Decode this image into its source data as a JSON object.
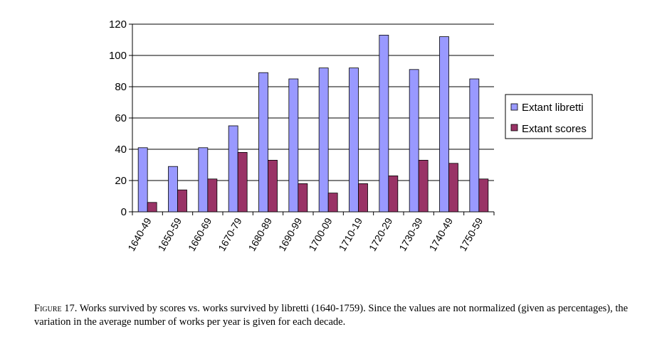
{
  "chart_data": {
    "type": "bar",
    "categories": [
      "1640-49",
      "1650-59",
      "1660-69",
      "1670-79",
      "1680-89",
      "1690-99",
      "1700-09",
      "1710-19",
      "1720-29",
      "1730-39",
      "1740-49",
      "1750-59"
    ],
    "series": [
      {
        "name": "Extant libretti",
        "color": "#9999ff",
        "values": [
          41,
          29,
          41,
          55,
          89,
          85,
          92,
          92,
          113,
          91,
          112,
          85
        ]
      },
      {
        "name": "Extant scores",
        "color": "#993366",
        "values": [
          6,
          14,
          21,
          38,
          33,
          18,
          12,
          18,
          23,
          33,
          31,
          21
        ]
      }
    ],
    "ylim": [
      0,
      120
    ],
    "yticks": [
      "0",
      "20",
      "40",
      "60",
      "80",
      "100",
      "120"
    ],
    "grid": true,
    "legend_position": "right"
  },
  "caption": {
    "lead": "Figure 17.",
    "text": " Works survived by scores vs. works survived by libretti (1640-1759). Since the values are not normalized (given as percentages), the variation in the average number of works per year is given for each decade."
  }
}
